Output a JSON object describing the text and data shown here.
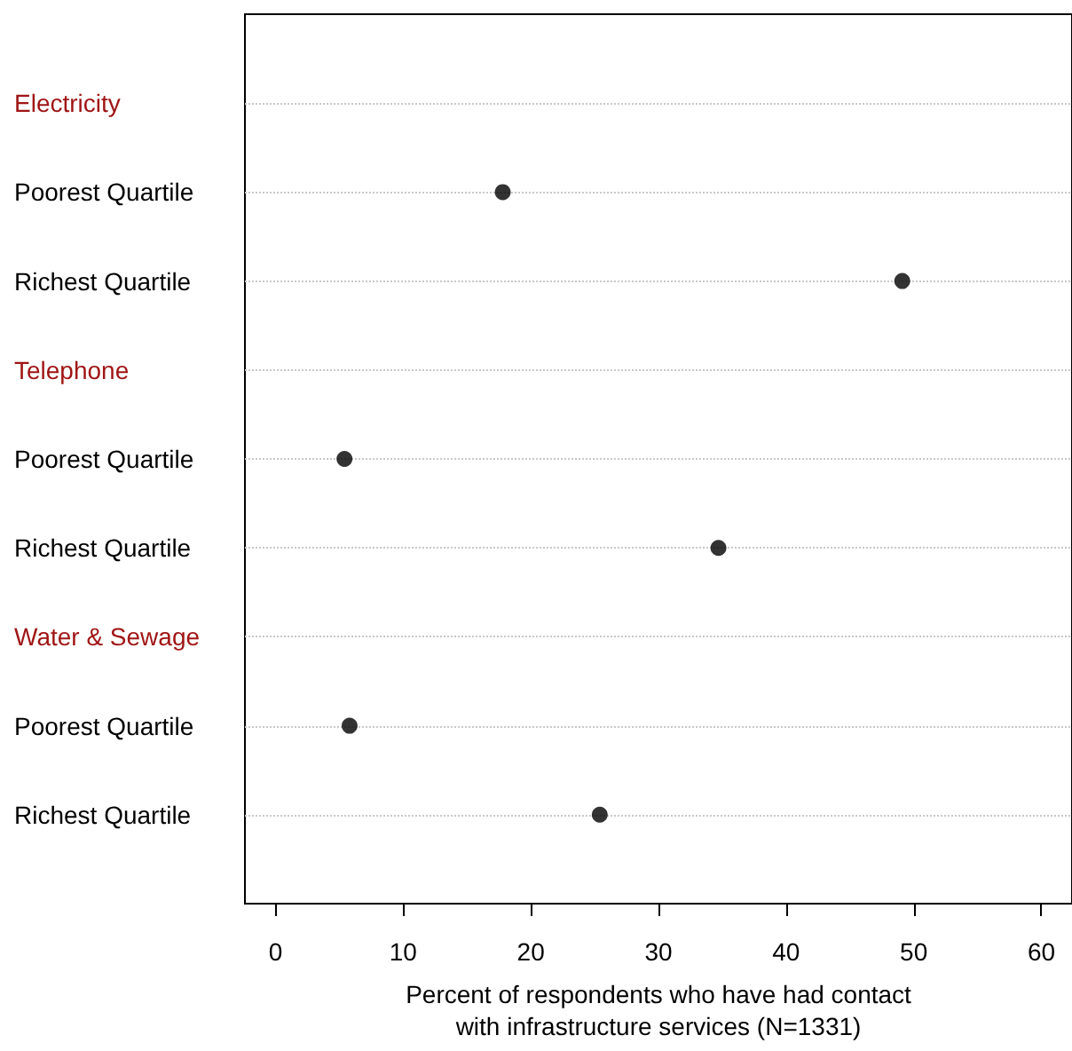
{
  "chart_data": {
    "type": "scatter",
    "xlabel": "Percent of respondents who have had contact\nwith infrastructure services (N=1331)",
    "categories": [
      "Electricity",
      "Poorest Quartile",
      "Richest Quartile",
      "Telephone",
      "Poorest Quartile",
      "Richest Quartile",
      "Water & Sewage",
      "Poorest Quartile",
      "Richest Quartile"
    ],
    "values": [
      null,
      17.8,
      49.1,
      null,
      5.4,
      34.7,
      null,
      5.8,
      25.4
    ],
    "color": "#000000",
    "xlim": [
      -2.4,
      62.4
    ],
    "xticks": [
      0,
      10,
      20,
      30,
      40,
      50,
      60
    ],
    "grid": "y",
    "marker": "circle",
    "orientation": "horizontal"
  }
}
